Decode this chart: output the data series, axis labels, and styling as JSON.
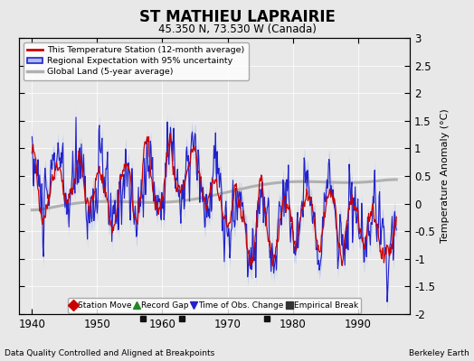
{
  "title": "ST MATHIEU LAPRAIRIE",
  "subtitle": "45.350 N, 73.530 W (Canada)",
  "xlabel_note": "Data Quality Controlled and Aligned at Breakpoints",
  "ylabel": "Temperature Anomaly (°C)",
  "credit": "Berkeley Earth",
  "xmin": 1938,
  "xmax": 1998,
  "ymin": -2.0,
  "ymax": 3.0,
  "yticks": [
    -2,
    -1.5,
    -1,
    -0.5,
    0,
    0.5,
    1,
    1.5,
    2,
    2.5,
    3
  ],
  "xticks": [
    1940,
    1950,
    1960,
    1970,
    1980,
    1990
  ],
  "bg_color": "#e8e8e8",
  "plot_bg_color": "#e8e8e8",
  "legend_entries": [
    "This Temperature Station (12-month average)",
    "Regional Expectation with 95% uncertainty",
    "Global Land (5-year average)"
  ],
  "station_color": "#cc0000",
  "regional_color": "#2222cc",
  "regional_band_color": "#aabbee",
  "global_color": "#b0b0b0",
  "marker_legend": [
    {
      "label": "Station Move",
      "color": "#cc0000",
      "marker": "D"
    },
    {
      "label": "Record Gap",
      "color": "#228822",
      "marker": "^"
    },
    {
      "label": "Time of Obs. Change",
      "color": "#2222cc",
      "marker": "v"
    },
    {
      "label": "Empirical Break",
      "color": "#333333",
      "marker": "s"
    }
  ],
  "empirical_break_years": [
    1957,
    1963,
    1976
  ],
  "seed": 42
}
